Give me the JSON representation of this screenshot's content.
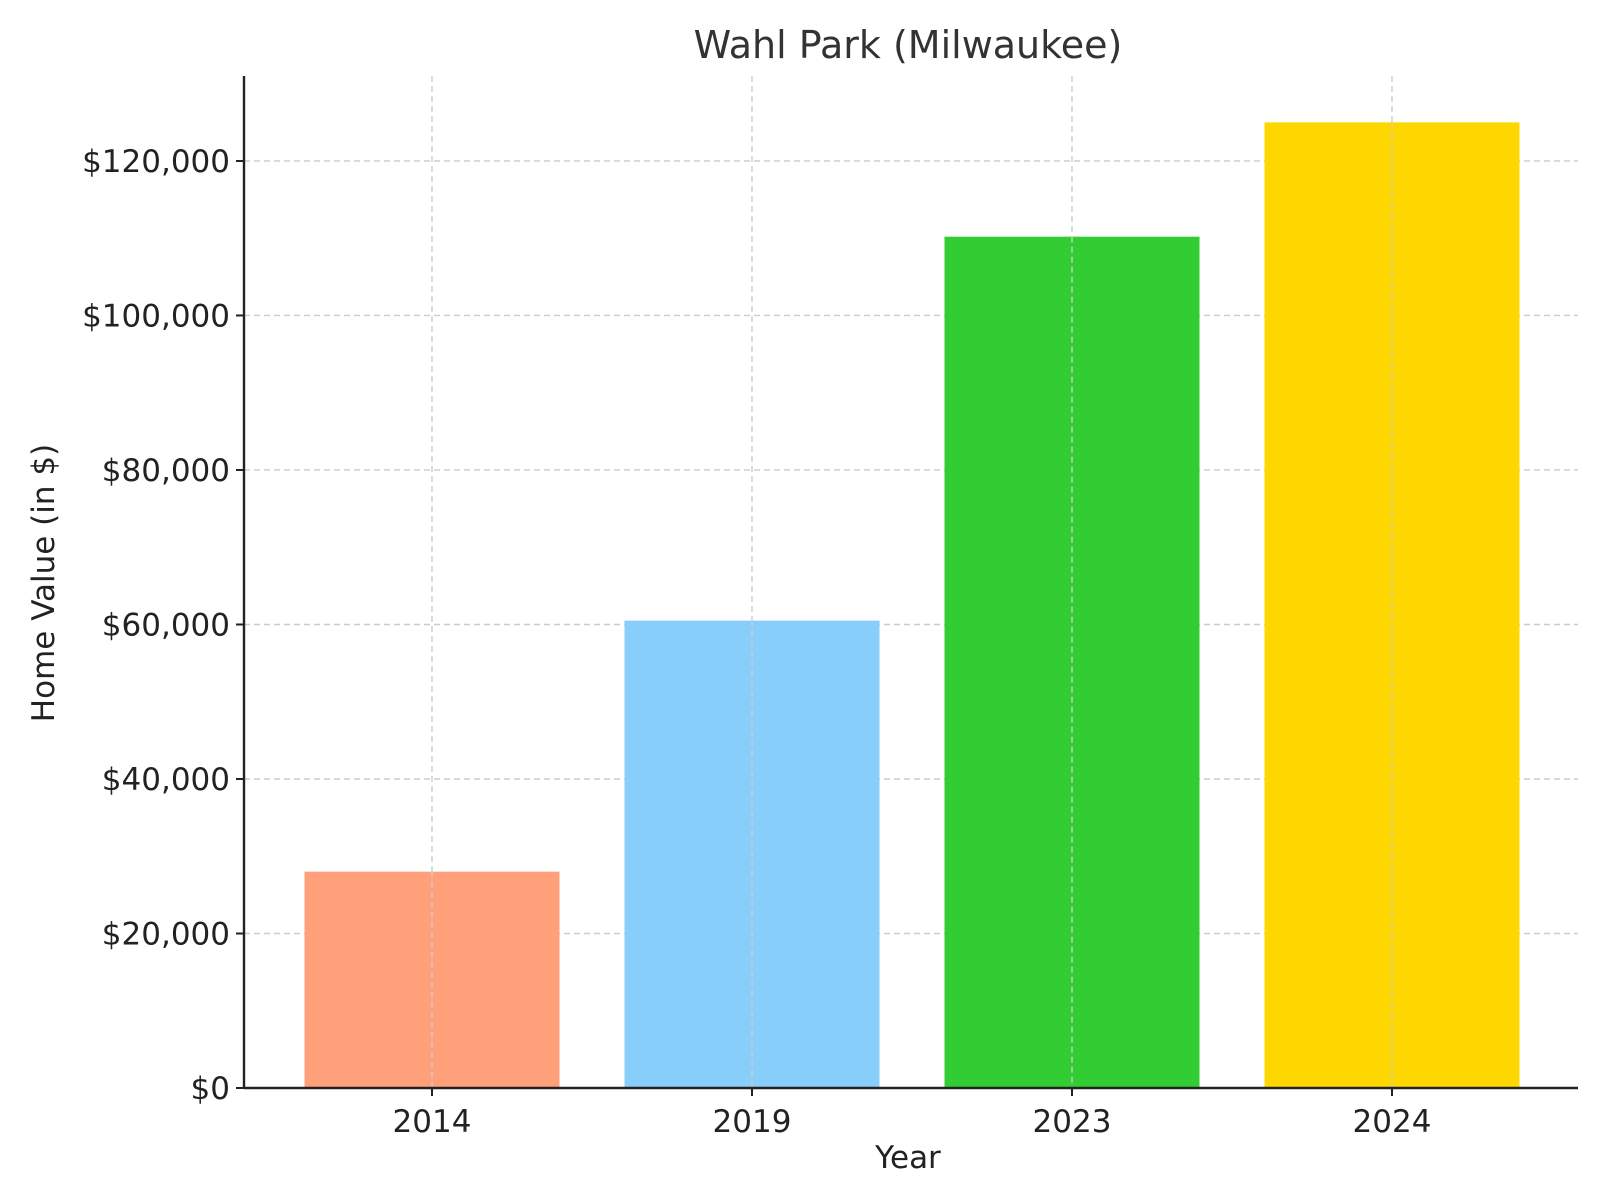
{
  "chart_data": {
    "type": "bar",
    "title": "Wahl Park (Milwaukee)",
    "xlabel": "Year",
    "ylabel": "Home Value (in $)",
    "categories": [
      "2014",
      "2019",
      "2023",
      "2024"
    ],
    "values": [
      28000,
      60500,
      110200,
      125000
    ],
    "colors": [
      "#FFA07A",
      "#87CEFA",
      "#32CD32",
      "#FFD700"
    ],
    "ylim": [
      0,
      131000
    ],
    "yticks": [
      0,
      20000,
      40000,
      60000,
      80000,
      100000,
      120000
    ],
    "ytick_labels": [
      "$0",
      "$20,000",
      "$40,000",
      "$60,000",
      "$80,000",
      "$100,000",
      "$120,000"
    ],
    "grid": true,
    "legend": "none"
  }
}
